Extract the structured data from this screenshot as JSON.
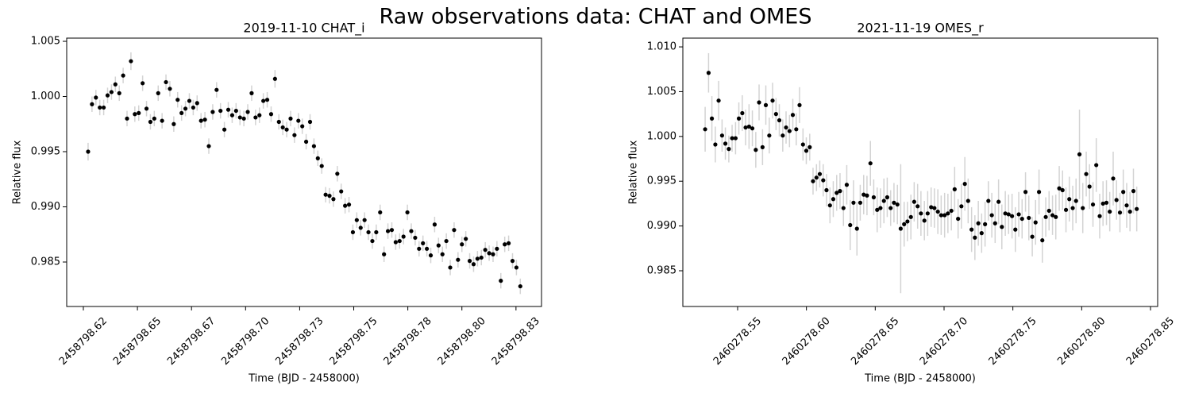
{
  "title": "Raw observations data: CHAT and OMES",
  "chart_data": [
    {
      "type": "scatter",
      "title": "2019-11-10 CHAT_i",
      "xlabel": "Time (BJD - 2458000)",
      "ylabel": "Relative flux",
      "color": "#000000",
      "error_color": "#d3d3d3",
      "xlim": [
        2458798.6173,
        2458798.8368
      ],
      "ylim": [
        0.98097,
        1.00529
      ],
      "xticks": [
        {
          "value": 2458798.625,
          "label": "2458798.62"
        },
        {
          "value": 2458798.65,
          "label": "2458798.65"
        },
        {
          "value": 2458798.675,
          "label": "2458798.67"
        },
        {
          "value": 2458798.7,
          "label": "2458798.70"
        },
        {
          "value": 2458798.725,
          "label": "2458798.73"
        },
        {
          "value": 2458798.75,
          "label": "2458798.75"
        },
        {
          "value": 2458798.775,
          "label": "2458798.78"
        },
        {
          "value": 2458798.8,
          "label": "2458798.80"
        },
        {
          "value": 2458798.825,
          "label": "2458798.83"
        }
      ],
      "yticks": [
        0.985,
        {
          "value": 0.99,
          "label": "0.990"
        },
        0.995,
        {
          "value": 1,
          "label": "1.000"
        },
        1.005
      ],
      "x": [
        2458798.6272,
        2458798.629,
        2458798.6308,
        2458798.6326,
        2458798.6344,
        2458798.6362,
        2458798.638,
        2458798.6398,
        2458798.6416,
        2458798.6434,
        2458798.6452,
        2458798.647,
        2458798.6488,
        2458798.6506,
        2458798.6524,
        2458798.6542,
        2458798.656,
        2458798.6578,
        2458798.6596,
        2458798.6614,
        2458798.6632,
        2458798.665,
        2458798.6668,
        2458798.6686,
        2458798.6704,
        2458798.6722,
        2458798.674,
        2458798.6758,
        2458798.6776,
        2458798.6794,
        2458798.6812,
        2458798.683,
        2458798.6848,
        2458798.6866,
        2458798.6884,
        2458798.6902,
        2458798.692,
        2458798.6938,
        2458798.6956,
        2458798.6974,
        2458798.6992,
        2458798.701,
        2458798.7028,
        2458798.7046,
        2458798.7064,
        2458798.7082,
        2458798.71,
        2458798.7118,
        2458798.7136,
        2458798.7154,
        2458798.7172,
        2458798.719,
        2458798.7208,
        2458798.7226,
        2458798.7244,
        2458798.7262,
        2458798.728,
        2458798.7298,
        2458798.7316,
        2458798.7334,
        2458798.7352,
        2458798.737,
        2458798.7388,
        2458798.7406,
        2458798.7424,
        2458798.7442,
        2458798.746,
        2458798.7478,
        2458798.7496,
        2458798.7514,
        2458798.7532,
        2458798.755,
        2458798.7568,
        2458798.7586,
        2458798.7604,
        2458798.7622,
        2458798.764,
        2458798.7658,
        2458798.7676,
        2458798.7694,
        2458798.7712,
        2458798.773,
        2458798.7748,
        2458798.7766,
        2458798.7784,
        2458798.7802,
        2458798.782,
        2458798.7838,
        2458798.7856,
        2458798.7874,
        2458798.7892,
        2458798.791,
        2458798.7928,
        2458798.7946,
        2458798.7964,
        2458798.7982,
        2458798.8,
        2458798.8018,
        2458798.8036,
        2458798.8054,
        2458798.8072,
        2458798.809,
        2458798.8108,
        2458798.8126,
        2458798.8144,
        2458798.8162,
        2458798.818,
        2458798.8198,
        2458798.8216,
        2458798.8234,
        2458798.8252,
        2458798.827
      ],
      "values": [
        0.995,
        0.9993,
        0.9999,
        0.999,
        0.999,
        1.0001,
        1.0004,
        1.0011,
        1.0003,
        1.0019,
        0.998,
        1.0032,
        0.9984,
        0.9985,
        1.0012,
        0.9989,
        0.9977,
        0.998,
        1.0003,
        0.9978,
        1.0013,
        1.0007,
        0.9975,
        0.9997,
        0.9985,
        0.9989,
        0.9996,
        0.999,
        0.9994,
        0.9978,
        0.9979,
        0.9955,
        0.9986,
        1.0006,
        0.9987,
        0.997,
        0.9988,
        0.9983,
        0.9987,
        0.9981,
        0.998,
        0.9986,
        1.0003,
        0.9981,
        0.9983,
        0.9996,
        0.9997,
        0.9984,
        1.0016,
        0.9977,
        0.9972,
        0.997,
        0.998,
        0.9965,
        0.9978,
        0.9973,
        0.9959,
        0.9977,
        0.9955,
        0.9944,
        0.9937,
        0.9911,
        0.991,
        0.9907,
        0.993,
        0.9914,
        0.9901,
        0.9902,
        0.9877,
        0.9888,
        0.9881,
        0.9888,
        0.9877,
        0.9869,
        0.9877,
        0.9895,
        0.9857,
        0.9878,
        0.9879,
        0.9868,
        0.9869,
        0.9873,
        0.9895,
        0.9878,
        0.9872,
        0.9862,
        0.9867,
        0.9862,
        0.9856,
        0.9884,
        0.9865,
        0.9857,
        0.9869,
        0.9845,
        0.9879,
        0.9852,
        0.9866,
        0.9871,
        0.9851,
        0.9848,
        0.9853,
        0.9854,
        0.9861,
        0.9858,
        0.9857,
        0.9862,
        0.9833,
        0.9866,
        0.9867,
        0.9851,
        0.9845,
        0.9828
      ],
      "errors": [
        0.0008,
        0.0007,
        0.0007,
        0.0007,
        0.0007,
        0.0007,
        0.0007,
        0.0007,
        0.0007,
        0.0007,
        0.0007,
        0.0008,
        0.0007,
        0.0007,
        0.0007,
        0.0007,
        0.0007,
        0.0007,
        0.0007,
        0.0007,
        0.0007,
        0.0007,
        0.0007,
        0.0007,
        0.0007,
        0.0007,
        0.0007,
        0.0007,
        0.0007,
        0.0007,
        0.0007,
        0.0007,
        0.0007,
        0.0007,
        0.0007,
        0.0007,
        0.0007,
        0.0007,
        0.0007,
        0.0007,
        0.0007,
        0.0007,
        0.0007,
        0.0007,
        0.0007,
        0.0007,
        0.0007,
        0.0007,
        0.0008,
        0.0007,
        0.0007,
        0.0007,
        0.0007,
        0.0007,
        0.0007,
        0.0007,
        0.0007,
        0.0007,
        0.0007,
        0.0007,
        0.0007,
        0.0007,
        0.0007,
        0.0007,
        0.0007,
        0.0007,
        0.0007,
        0.0007,
        0.0007,
        0.0007,
        0.0007,
        0.0007,
        0.0007,
        0.0007,
        0.0007,
        0.0007,
        0.0007,
        0.0007,
        0.0007,
        0.0007,
        0.0007,
        0.0007,
        0.0007,
        0.0007,
        0.0007,
        0.0007,
        0.0007,
        0.0007,
        0.0007,
        0.0007,
        0.0007,
        0.0007,
        0.0007,
        0.0007,
        0.0007,
        0.0007,
        0.0007,
        0.0007,
        0.0007,
        0.0007,
        0.0007,
        0.0007,
        0.0007,
        0.0007,
        0.0007,
        0.0007,
        0.0007,
        0.0007,
        0.0007,
        0.0007,
        0.0007,
        0.0007
      ]
    },
    {
      "type": "scatter",
      "title": "2021-11-19 OMES_r",
      "xlabel": "Time (BJD - 2458000)",
      "ylabel": "Relative flux",
      "color": "#000000",
      "error_color": "#d3d3d3",
      "xlim": [
        2460278.5102,
        2460278.8552
      ],
      "ylim": [
        0.98101,
        1.01098
      ],
      "xticks": [
        2460278.55,
        {
          "value": 2460278.6,
          "label": "2460278.60"
        },
        2460278.65,
        {
          "value": 2460278.7,
          "label": "2460278.70"
        },
        2460278.75,
        {
          "value": 2460278.8,
          "label": "2460278.80"
        },
        2460278.85
      ],
      "yticks": [
        0.985,
        {
          "value": 0.99,
          "label": "0.990"
        },
        0.995,
        {
          "value": 1,
          "label": "1.000"
        },
        1.005,
        {
          "value": 1.01,
          "label": "1.010"
        }
      ],
      "x": [
        2460278.5264,
        2460278.5289,
        2460278.5313,
        2460278.5338,
        2460278.5362,
        2460278.5387,
        2460278.5411,
        2460278.5436,
        2460278.546,
        2460278.5485,
        2460278.5509,
        2460278.5534,
        2460278.5558,
        2460278.5583,
        2460278.5607,
        2460278.5632,
        2460278.5656,
        2460278.5681,
        2460278.5705,
        2460278.573,
        2460278.5754,
        2460278.5779,
        2460278.5803,
        2460278.5828,
        2460278.5852,
        2460278.5877,
        2460278.5901,
        2460278.5926,
        2460278.595,
        2460278.5975,
        2460278.5999,
        2460278.6024,
        2460278.6048,
        2460278.6073,
        2460278.6097,
        2460278.6122,
        2460278.6146,
        2460278.6171,
        2460278.6195,
        2460278.622,
        2460278.6244,
        2460278.6269,
        2460278.6293,
        2460278.6318,
        2460278.6342,
        2460278.6367,
        2460278.6391,
        2460278.6416,
        2460278.644,
        2460278.6465,
        2460278.6489,
        2460278.6514,
        2460278.6538,
        2460278.6563,
        2460278.6587,
        2460278.6612,
        2460278.6636,
        2460278.6661,
        2460278.6685,
        2460278.671,
        2460278.6734,
        2460278.6759,
        2460278.6783,
        2460278.6808,
        2460278.6832,
        2460278.6857,
        2460278.6881,
        2460278.6906,
        2460278.693,
        2460278.6955,
        2460278.6979,
        2460278.7004,
        2460278.7028,
        2460278.7053,
        2460278.7077,
        2460278.7102,
        2460278.7126,
        2460278.7151,
        2460278.7175,
        2460278.72,
        2460278.7224,
        2460278.7249,
        2460278.7273,
        2460278.7298,
        2460278.7322,
        2460278.7347,
        2460278.7371,
        2460278.7396,
        2460278.742,
        2460278.7445,
        2460278.7469,
        2460278.7494,
        2460278.7518,
        2460278.7543,
        2460278.7567,
        2460278.7592,
        2460278.7616,
        2460278.7641,
        2460278.7665,
        2460278.769,
        2460278.7714,
        2460278.7739,
        2460278.7763,
        2460278.7788,
        2460278.7812,
        2460278.7837,
        2460278.7861,
        2460278.7886,
        2460278.791,
        2460278.7935,
        2460278.7959,
        2460278.7984,
        2460278.8008,
        2460278.8033,
        2460278.8057,
        2460278.8082,
        2460278.8106,
        2460278.8131,
        2460278.8155,
        2460278.818,
        2460278.8204,
        2460278.8229,
        2460278.8253,
        2460278.8278,
        2460278.8302,
        2460278.8327,
        2460278.8351,
        2460278.8376,
        2460278.84
      ],
      "values": [
        1.0008,
        1.0071,
        1.002,
        0.9991,
        1.004,
        1.0001,
        0.9992,
        0.9986,
        0.9998,
        0.9998,
        1.002,
        1.0026,
        1.001,
        1.0011,
        1.0009,
        0.9985,
        1.0038,
        0.9988,
        1.0035,
        1.0001,
        1.004,
        1.0025,
        1.0018,
        1.0001,
        1.001,
        1.0006,
        1.0024,
        1.0008,
        1.0035,
        0.9991,
        0.9984,
        0.9988,
        0.995,
        0.9954,
        0.9958,
        0.9951,
        0.994,
        0.9923,
        0.993,
        0.9937,
        0.9939,
        0.992,
        0.9946,
        0.9901,
        0.9926,
        0.9897,
        0.9926,
        0.9935,
        0.9934,
        0.997,
        0.9932,
        0.9918,
        0.992,
        0.9928,
        0.9932,
        0.992,
        0.9926,
        0.9924,
        0.9897,
        0.9902,
        0.9905,
        0.991,
        0.9927,
        0.9922,
        0.9914,
        0.9906,
        0.9914,
        0.9921,
        0.992,
        0.9916,
        0.9912,
        0.9912,
        0.9914,
        0.9917,
        0.9941,
        0.9908,
        0.9922,
        0.9947,
        0.9928,
        0.9896,
        0.9887,
        0.9903,
        0.9892,
        0.9902,
        0.9928,
        0.9912,
        0.9903,
        0.9927,
        0.9899,
        0.9914,
        0.9913,
        0.9911,
        0.9896,
        0.9913,
        0.9908,
        0.9938,
        0.9909,
        0.9888,
        0.9904,
        0.9938,
        0.9884,
        0.991,
        0.9917,
        0.9912,
        0.991,
        0.9942,
        0.994,
        0.9918,
        0.993,
        0.992,
        0.9928,
        0.998,
        0.992,
        0.9958,
        0.9944,
        0.9924,
        0.9968,
        0.9911,
        0.9925,
        0.9926,
        0.9916,
        0.9953,
        0.9929,
        0.9915,
        0.9938,
        0.9923,
        0.9916,
        0.9939,
        0.9919
      ],
      "errors": [
        0.0025,
        0.0022,
        0.0025,
        0.002,
        0.0022,
        0.0018,
        0.0018,
        0.0015,
        0.0015,
        0.0018,
        0.0018,
        0.002,
        0.002,
        0.0025,
        0.002,
        0.002,
        0.002,
        0.002,
        0.0022,
        0.002,
        0.002,
        0.0018,
        0.0018,
        0.0018,
        0.0018,
        0.0018,
        0.0018,
        0.0018,
        0.002,
        0.0018,
        0.0015,
        0.0015,
        0.0015,
        0.0015,
        0.0015,
        0.0018,
        0.0018,
        0.002,
        0.002,
        0.002,
        0.002,
        0.002,
        0.0022,
        0.0028,
        0.0025,
        0.003,
        0.002,
        0.0022,
        0.0022,
        0.0025,
        0.002,
        0.0025,
        0.0022,
        0.0025,
        0.0022,
        0.002,
        0.0022,
        0.0022,
        0.0072,
        0.0025,
        0.0022,
        0.0025,
        0.0022,
        0.0025,
        0.0025,
        0.0022,
        0.0025,
        0.0022,
        0.0022,
        0.0025,
        0.0022,
        0.0025,
        0.0022,
        0.0022,
        0.0025,
        0.0022,
        0.0025,
        0.003,
        0.0025,
        0.0025,
        0.0025,
        0.0025,
        0.0022,
        0.0025,
        0.0022,
        0.0025,
        0.0022,
        0.0025,
        0.0025,
        0.0025,
        0.0022,
        0.0025,
        0.0025,
        0.0025,
        0.0022,
        0.0022,
        0.0025,
        0.0022,
        0.0025,
        0.0025,
        0.0025,
        0.0022,
        0.0022,
        0.0022,
        0.0025,
        0.0025,
        0.0022,
        0.0025,
        0.0025,
        0.0025,
        0.0025,
        0.005,
        0.0028,
        0.0025,
        0.0025,
        0.0025,
        0.003,
        0.0025,
        0.0025,
        0.0025,
        0.0022,
        0.003,
        0.0022,
        0.0022,
        0.0025,
        0.0025,
        0.0022,
        0.0025,
        0.0025
      ]
    }
  ]
}
